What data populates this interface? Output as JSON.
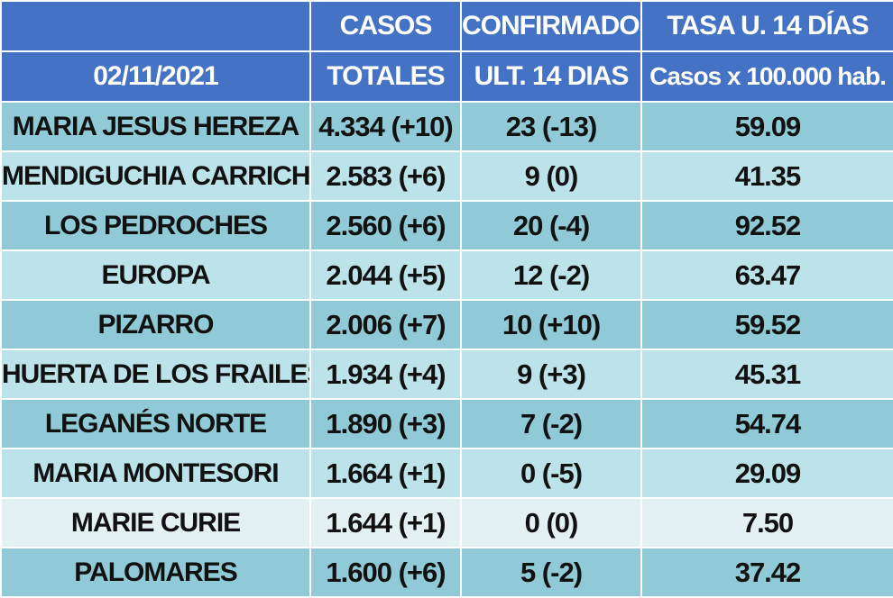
{
  "header": {
    "row1": [
      "",
      "CASOS",
      "CONFIRMADOS",
      "TASA U. 14 DÍAS"
    ],
    "row2": [
      "02/11/2021",
      "TOTALES",
      "ULT. 14 DIAS",
      "Casos x 100.000 hab."
    ]
  },
  "rows": [
    {
      "name": "MARIA JESUS HEREZA",
      "totales": "4.334 (+10)",
      "ult14": "23 (-13)",
      "tasa": "59.09"
    },
    {
      "name": "MENDIGUCHIA CARRICHE",
      "totales": "2.583 (+6)",
      "ult14": "9 (0)",
      "tasa": "41.35"
    },
    {
      "name": "LOS PEDROCHES",
      "totales": "2.560 (+6)",
      "ult14": "20 (-4)",
      "tasa": "92.52"
    },
    {
      "name": "EUROPA",
      "totales": "2.044 (+5)",
      "ult14": "12 (-2)",
      "tasa": "63.47"
    },
    {
      "name": "PIZARRO",
      "totales": "2.006 (+7)",
      "ult14": "10 (+10)",
      "tasa": "59.52"
    },
    {
      "name": "HUERTA DE LOS FRAILES",
      "totales": "1.934 (+4)",
      "ult14": "9 (+3)",
      "tasa": "45.31"
    },
    {
      "name": "LEGANÉS NORTE",
      "totales": "1.890 (+3)",
      "ult14": "7 (-2)",
      "tasa": "54.74"
    },
    {
      "name": "MARIA MONTESORI",
      "totales": "1.664  (+1)",
      "ult14": "0 (-5)",
      "tasa": "29.09"
    },
    {
      "name": "MARIE CURIE",
      "totales": "1.644 (+1)",
      "ult14": "0 (0)",
      "tasa": "7.50"
    },
    {
      "name": "PALOMARES",
      "totales": "1.600 (+6)",
      "ult14": "5 (-2)",
      "tasa": "37.42"
    }
  ],
  "colors": {
    "header_bg": "#4472c4",
    "row_dark": "#8fcad6",
    "row_light": "#bde3ea",
    "row_pale": "#e4f1f3"
  }
}
